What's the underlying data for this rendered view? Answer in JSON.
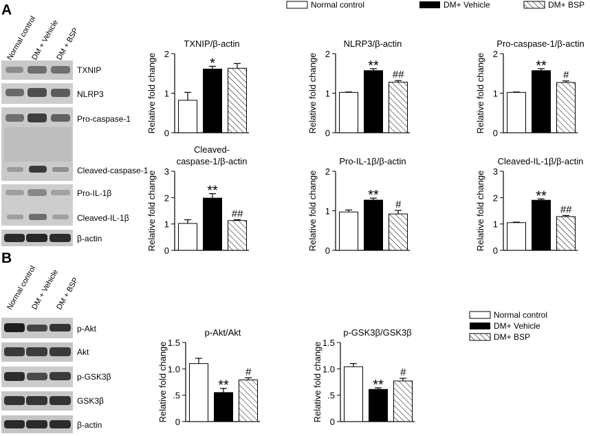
{
  "panel_labels": {
    "a": "A",
    "b": "B"
  },
  "legend_top": {
    "normal": "Normal control",
    "vehicle": "DM+ Vehicle",
    "bsp": "DM+ BSP"
  },
  "legend_bottom": {
    "normal": "Normal control",
    "vehicle": "DM+ Vehicle",
    "bsp": "DM+ BSP"
  },
  "blot_a": {
    "lanes": [
      "Normal control",
      "DM + Vehicle",
      "DM + BSP"
    ],
    "bands": [
      "TXNIP",
      "NLRP3",
      "Pro-caspase-1",
      "Cleaved-caspase-1",
      "Pro-IL-1β",
      "Cleaved-IL-1β",
      "β-actin"
    ]
  },
  "blot_b": {
    "lanes": [
      "Normal control",
      "DM + Vehicle",
      "DM + BSP"
    ],
    "bands": [
      "p-Akt",
      "Akt",
      "p-GSK3β",
      "GSK3β",
      "β-actin"
    ]
  },
  "colors": {
    "bar_vehicle": "#000000",
    "bar_normal": "#ffffff",
    "axis": "#000000"
  },
  "chart_data": [
    {
      "id": "txnip",
      "type": "bar",
      "title": "TXNIP/β-actin",
      "ylabel": "Relative fold change",
      "categories": [
        "Normal control",
        "DM+ Vehicle",
        "DM+ BSP"
      ],
      "values": [
        0.82,
        1.61,
        1.63
      ],
      "errors": [
        0.2,
        0.07,
        0.12
      ],
      "annotations": [
        "",
        "*",
        ""
      ],
      "ylim": [
        0,
        2
      ],
      "yticks": [
        "0",
        "1",
        "2"
      ]
    },
    {
      "id": "nlrp3",
      "type": "bar",
      "title": "NLRP3/β-actin",
      "ylabel": "Relative fold change",
      "categories": [
        "Normal control",
        "DM+ Vehicle",
        "DM+ BSP"
      ],
      "values": [
        1.02,
        1.57,
        1.28
      ],
      "errors": [
        0.01,
        0.05,
        0.04
      ],
      "annotations": [
        "",
        "**",
        "##"
      ],
      "ylim": [
        0,
        2
      ],
      "yticks": [
        "0",
        "1",
        "2"
      ]
    },
    {
      "id": "procasp1",
      "type": "bar",
      "title": "Pro-caspase-1/β-actin",
      "ylabel": "Relative fold change",
      "categories": [
        "Normal control",
        "DM+ Vehicle",
        "DM+ BSP"
      ],
      "values": [
        1.02,
        1.57,
        1.27
      ],
      "errors": [
        0.01,
        0.05,
        0.04
      ],
      "annotations": [
        "",
        "**",
        "#"
      ],
      "ylim": [
        0,
        2
      ],
      "yticks": [
        "0",
        "1",
        "2"
      ]
    },
    {
      "id": "cleavedcasp1",
      "type": "bar",
      "title": "Cleaved-caspase-1/β-actin",
      "title_lines": [
        "Cleaved-",
        "caspase-1/β-actin"
      ],
      "ylabel": "Relative fold change",
      "categories": [
        "Normal control",
        "DM+ Vehicle",
        "DM+ BSP"
      ],
      "values": [
        1.02,
        1.98,
        1.13
      ],
      "errors": [
        0.14,
        0.17,
        0.03
      ],
      "annotations": [
        "",
        "**",
        "##"
      ],
      "ylim": [
        0,
        3
      ],
      "yticks": [
        "0",
        "1",
        "2",
        "3"
      ]
    },
    {
      "id": "proil1b",
      "type": "bar",
      "title": "Pro-IL-1β/β-actin",
      "ylabel": "Relative fold change",
      "categories": [
        "Normal control",
        "DM+ Vehicle",
        "DM+ BSP"
      ],
      "values": [
        0.97,
        1.27,
        0.92
      ],
      "errors": [
        0.05,
        0.05,
        0.09
      ],
      "annotations": [
        "",
        "**",
        "#"
      ],
      "ylim": [
        0,
        2
      ],
      "yticks": [
        "0",
        "1",
        "2"
      ]
    },
    {
      "id": "cleavedil1b",
      "type": "bar",
      "title": "Cleaved-IL-1β/β-actin",
      "ylabel": "Relative fold change",
      "categories": [
        "Normal control",
        "DM+ Vehicle",
        "DM+ BSP"
      ],
      "values": [
        1.05,
        1.9,
        1.28
      ],
      "errors": [
        0.02,
        0.05,
        0.04
      ],
      "annotations": [
        "",
        "**",
        "##"
      ],
      "ylim": [
        0,
        3
      ],
      "yticks": [
        "0",
        "1",
        "2",
        "3"
      ]
    },
    {
      "id": "pakt",
      "type": "bar",
      "title": "p-Akt/Akt",
      "ylabel": "Relative fold change",
      "categories": [
        "Normal control",
        "DM+ Vehicle",
        "DM+ BSP"
      ],
      "values": [
        1.1,
        0.55,
        0.79
      ],
      "errors": [
        0.1,
        0.08,
        0.04
      ],
      "annotations": [
        "",
        "**",
        "#"
      ],
      "ylim": [
        0,
        1.5
      ],
      "yticks": [
        "0",
        ".5",
        "1.0",
        "1.5"
      ]
    },
    {
      "id": "pgsk3b",
      "type": "bar",
      "title": "p-GSK3β/GSK3β",
      "ylabel": "Relative fold change",
      "categories": [
        "Normal control",
        "DM+ Vehicle",
        "DM+ BSP"
      ],
      "values": [
        1.04,
        0.61,
        0.77
      ],
      "errors": [
        0.06,
        0.03,
        0.05
      ],
      "annotations": [
        "",
        "**",
        "#"
      ],
      "ylim": [
        0,
        1.5
      ],
      "yticks": [
        "0",
        ".5",
        "1.0",
        "1.5"
      ]
    }
  ]
}
